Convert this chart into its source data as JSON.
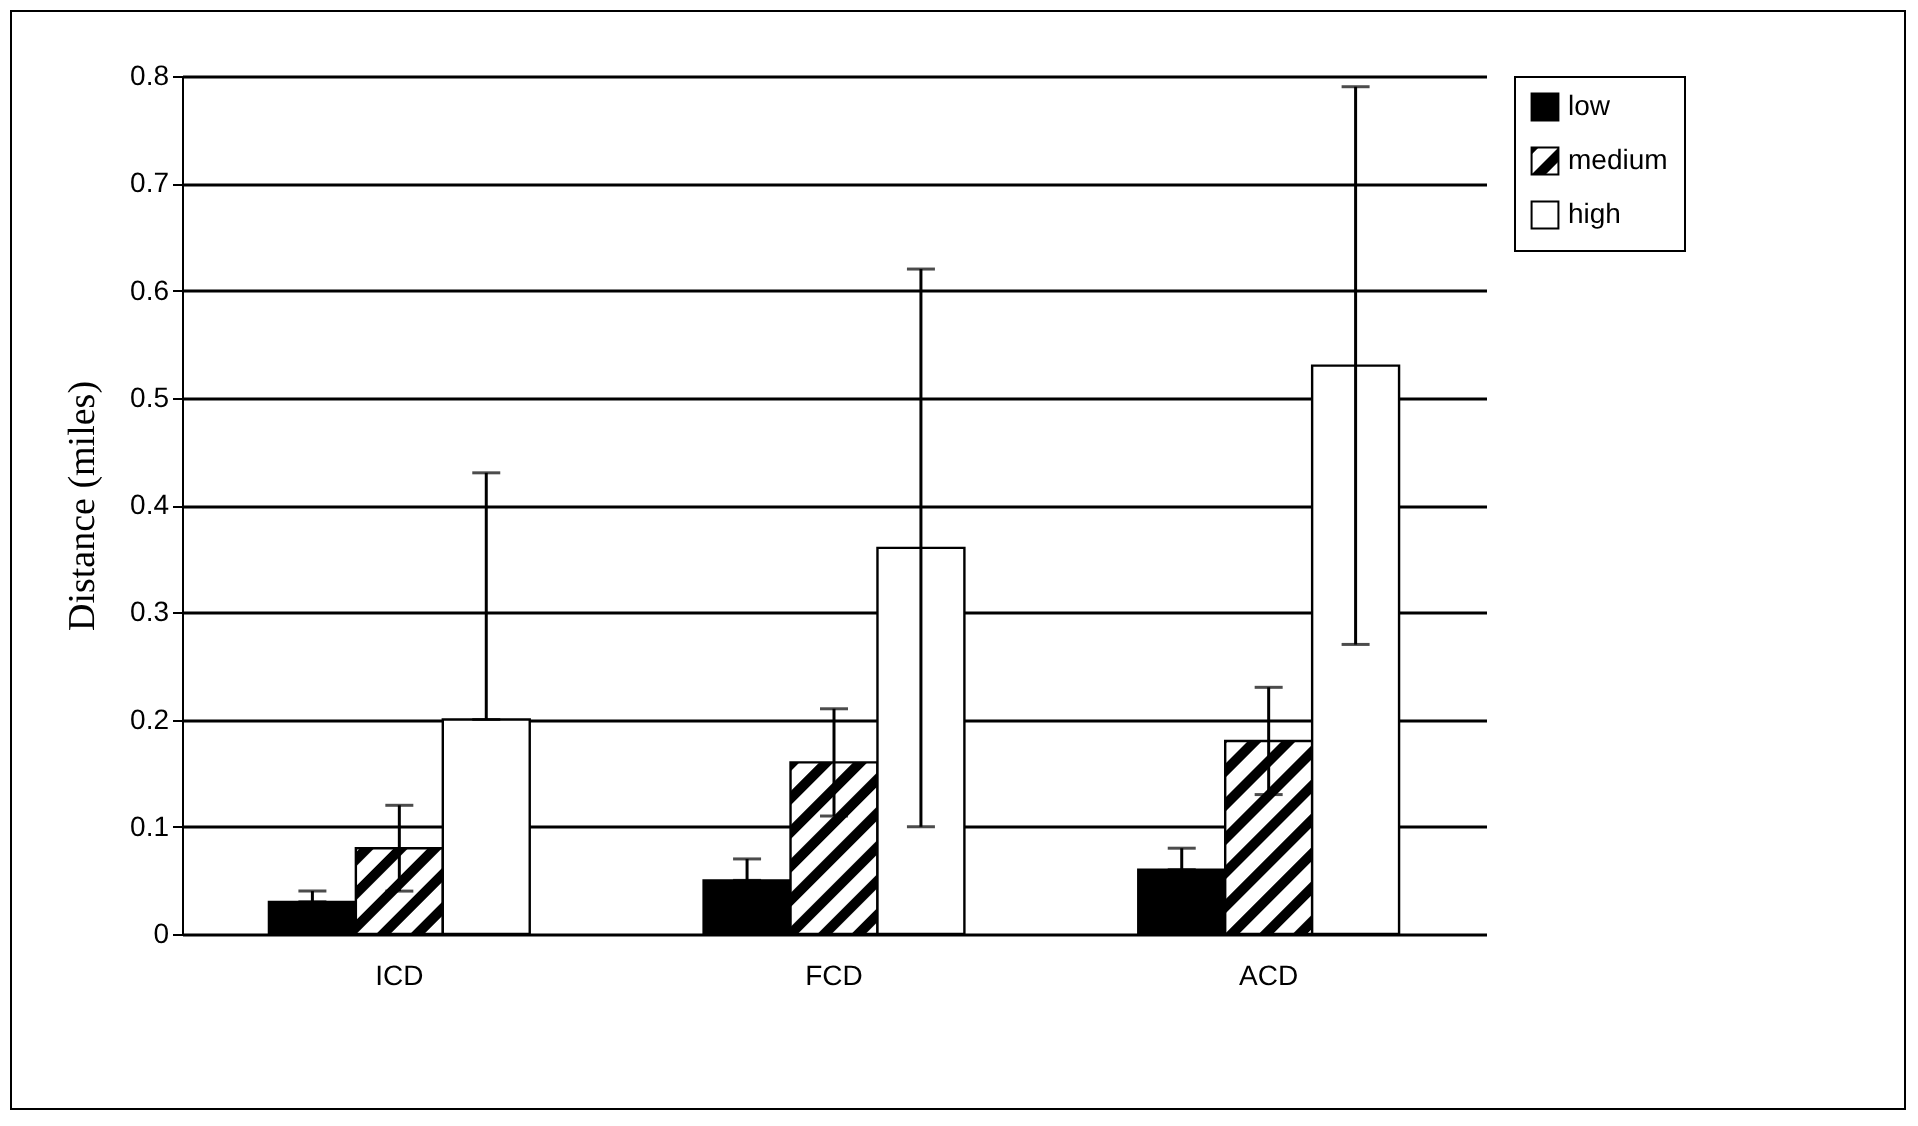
{
  "chart_data": {
    "type": "bar",
    "ylabel": "Distance (miles)",
    "categories": [
      "ICD",
      "FCD",
      "ACD"
    ],
    "series": [
      {
        "name": "low",
        "color": "#000000",
        "values": [
          0.03,
          0.05,
          0.06
        ],
        "errors": [
          [
            0.03,
            0.04
          ],
          [
            0.05,
            0.07
          ],
          [
            0.06,
            0.08
          ]
        ]
      },
      {
        "name": "medium",
        "color": "#000000",
        "values": [
          0.08,
          0.16,
          0.18
        ],
        "errors": [
          [
            0.04,
            0.12
          ],
          [
            0.11,
            0.21
          ],
          [
            0.13,
            0.23
          ]
        ]
      },
      {
        "name": "high",
        "color": "#ffffff",
        "values": [
          0.2,
          0.36,
          0.53
        ],
        "errors": [
          [
            0.2,
            0.43
          ],
          [
            0.1,
            0.62
          ],
          [
            0.27,
            0.79
          ]
        ]
      }
    ],
    "ylim": [
      0,
      0.8
    ],
    "yticks": [
      0,
      0.1,
      0.2,
      0.3,
      0.4,
      0.5,
      0.6,
      0.7,
      0.8
    ],
    "grid": "y",
    "legend": "right"
  }
}
